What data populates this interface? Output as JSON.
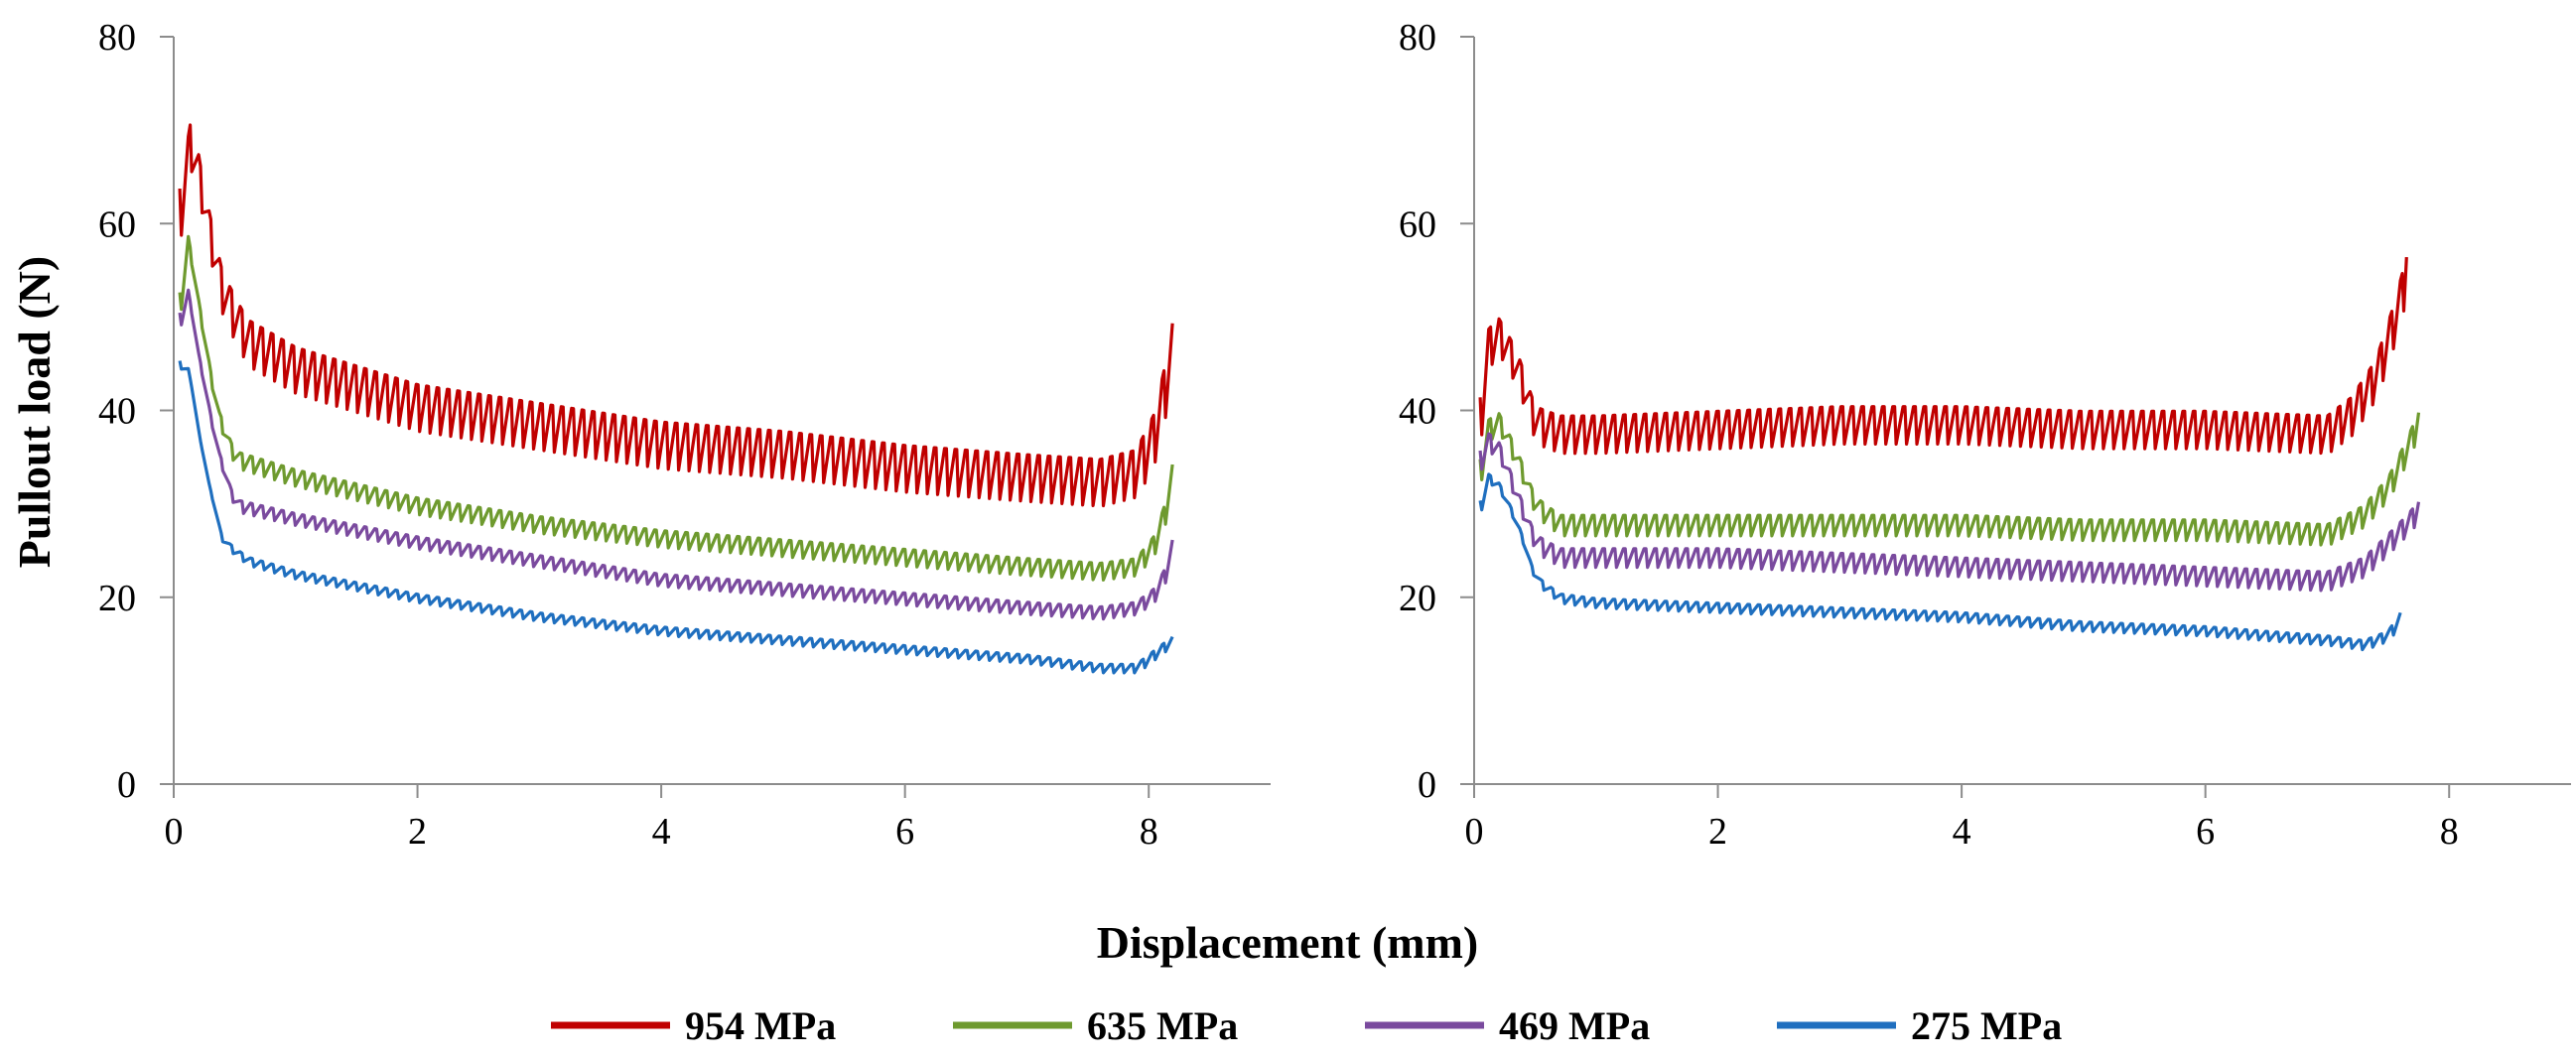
{
  "figure": {
    "ylabel": "Pullout load (N)",
    "xlabel": "Displacement (mm)"
  },
  "legend": [
    {
      "name": "954 MPa",
      "color": "#C00000"
    },
    {
      "name": "635 MPa",
      "color": "#6E9A2E"
    },
    {
      "name": "469 MPa",
      "color": "#7A4A9E"
    },
    {
      "name": "275 MPa",
      "color": "#1F6FBF"
    }
  ],
  "chart_data": [
    {
      "type": "line",
      "panel": "left",
      "title": "",
      "xlabel": "Displacement (mm)",
      "ylabel": "Pullout load (N)",
      "xlim": [
        0,
        9
      ],
      "ylim": [
        0,
        80
      ],
      "xticks": [
        0,
        2,
        4,
        6,
        8
      ],
      "yticks": [
        0,
        20,
        40,
        60,
        80
      ],
      "series": [
        {
          "name": "954 MPa",
          "color": "#C00000",
          "oscillation": 5,
          "x": [
            0.05,
            0.15,
            0.25,
            0.4,
            0.6,
            1,
            2,
            3,
            4,
            5,
            6,
            7,
            7.6,
            7.9,
            8.05,
            8.15,
            8.2
          ],
          "y": [
            62,
            70,
            62,
            53,
            48,
            45,
            41,
            39,
            37,
            36,
            34.5,
            33.5,
            33,
            34,
            38,
            44,
            48
          ]
        },
        {
          "name": "635 MPa",
          "color": "#6E9A2E",
          "oscillation": 1.8,
          "x": [
            0.05,
            0.12,
            0.22,
            0.35,
            0.5,
            1,
            2,
            3,
            4,
            5,
            6,
            7,
            7.6,
            7.9,
            8.05,
            8.15,
            8.2
          ],
          "y": [
            52,
            58,
            50,
            40,
            35,
            33,
            30,
            28,
            26.5,
            25.5,
            24.5,
            23.5,
            23,
            23.5,
            26,
            30,
            34
          ]
        },
        {
          "name": "469 MPa",
          "color": "#7A4A9E",
          "oscillation": 1.3,
          "x": [
            0.05,
            0.1,
            0.2,
            0.35,
            0.5,
            1,
            2,
            3,
            4,
            5,
            6,
            7,
            7.6,
            7.9,
            8.05,
            8.15,
            8.2
          ],
          "y": [
            50,
            54,
            46,
            36,
            30,
            28.5,
            26,
            24,
            22,
            21,
            20,
            19,
            18.5,
            19,
            20.5,
            23,
            26
          ]
        },
        {
          "name": "275 MPa",
          "color": "#1F6FBF",
          "oscillation": 0.9,
          "x": [
            0.05,
            0.08,
            0.15,
            0.25,
            0.4,
            0.6,
            1,
            2,
            3,
            4,
            5,
            6,
            7,
            7.6,
            7.9,
            8.05,
            8.2
          ],
          "y": [
            45,
            47,
            42,
            34,
            26,
            24,
            22.5,
            20,
            18,
            16.5,
            15.5,
            14.5,
            13.5,
            12.5,
            12.5,
            14,
            15.5
          ]
        }
      ]
    },
    {
      "type": "line",
      "panel": "right",
      "title": "",
      "xlabel": "Displacement (mm)",
      "ylabel": "",
      "xlim": [
        0,
        9
      ],
      "ylim": [
        0,
        80
      ],
      "xticks": [
        0,
        2,
        4,
        6,
        8
      ],
      "yticks": [
        0,
        20,
        40,
        60,
        80
      ],
      "series": [
        {
          "name": "954 MPa",
          "color": "#C00000",
          "oscillation": 4,
          "x": [
            0.05,
            0.1,
            0.2,
            0.35,
            0.5,
            0.7,
            1,
            2,
            3,
            4,
            5,
            6,
            7,
            7.2,
            7.4,
            7.55,
            7.65
          ],
          "y": [
            40,
            47,
            48.5,
            45,
            39,
            38,
            38,
            38.5,
            39,
            39,
            38.5,
            38.5,
            38,
            40,
            44,
            50,
            55
          ]
        },
        {
          "name": "635 MPa",
          "color": "#6E9A2E",
          "oscillation": 2.2,
          "x": [
            0.05,
            0.1,
            0.2,
            0.35,
            0.5,
            0.7,
            1,
            2,
            3,
            4,
            5,
            6,
            7,
            7.3,
            7.5,
            7.65,
            7.75
          ],
          "y": [
            34,
            38,
            39,
            35,
            30,
            28,
            28,
            28,
            28,
            28,
            27.5,
            27.5,
            27,
            29,
            32,
            36,
            39
          ]
        },
        {
          "name": "469 MPa",
          "color": "#7A4A9E",
          "oscillation": 2,
          "x": [
            0.05,
            0.1,
            0.2,
            0.35,
            0.5,
            0.7,
            1,
            2,
            3,
            4,
            5,
            6,
            7,
            7.3,
            7.5,
            7.65,
            7.75
          ],
          "y": [
            35,
            37,
            36,
            31,
            26,
            24.5,
            24.5,
            24.5,
            24,
            23.5,
            23,
            22.5,
            22,
            23.5,
            26,
            28,
            29.5
          ]
        },
        {
          "name": "275 MPa",
          "color": "#1F6FBF",
          "oscillation": 1,
          "x": [
            0.05,
            0.1,
            0.2,
            0.35,
            0.5,
            0.7,
            1,
            2,
            3,
            4,
            5,
            6,
            7,
            7.3,
            7.5,
            7.6
          ],
          "y": [
            30,
            33,
            32,
            28,
            22,
            20,
            19.5,
            19,
            18.5,
            18,
            17,
            16.5,
            15.5,
            15,
            16,
            18
          ]
        }
      ]
    }
  ]
}
